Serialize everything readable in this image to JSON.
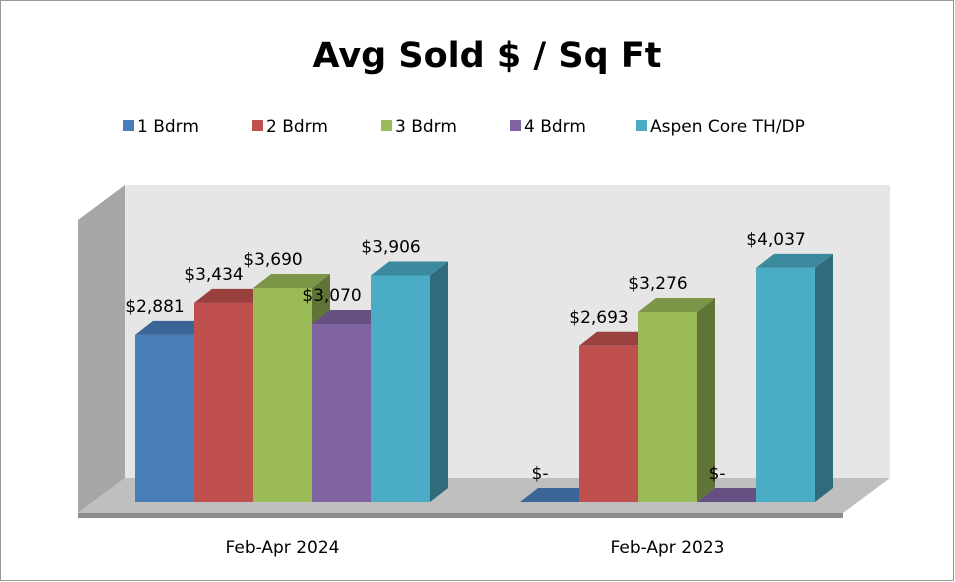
{
  "chart_data": {
    "type": "bar3d",
    "title": "Avg Sold $ / Sq Ft",
    "categories": [
      "Feb-Apr 2024",
      "Feb-Apr 2023"
    ],
    "series": [
      {
        "name": "1 Bdrm",
        "color": "#4a7ebb",
        "values": [
          2881,
          0
        ],
        "value_labels": [
          "$2,881",
          "$-"
        ]
      },
      {
        "name": "2 Bdrm",
        "color": "#c0504d",
        "values": [
          3434,
          2693
        ],
        "value_labels": [
          "$3,434",
          "$2,693"
        ]
      },
      {
        "name": "3 Bdrm",
        "color": "#9bbb59",
        "values": [
          3690,
          3276
        ],
        "value_labels": [
          "$3,690",
          "$3,276"
        ]
      },
      {
        "name": "4 Bdrm",
        "color": "#8064a2",
        "values": [
          3070,
          0
        ],
        "value_labels": [
          "$3,070",
          "$-"
        ]
      },
      {
        "name": "Aspen Core TH/DP",
        "color": "#4bacc6",
        "values": [
          3906,
          4037
        ],
        "value_labels": [
          "$3,906",
          "$4,037"
        ]
      }
    ],
    "ylim": [
      0,
      5000
    ],
    "legend": "top"
  }
}
